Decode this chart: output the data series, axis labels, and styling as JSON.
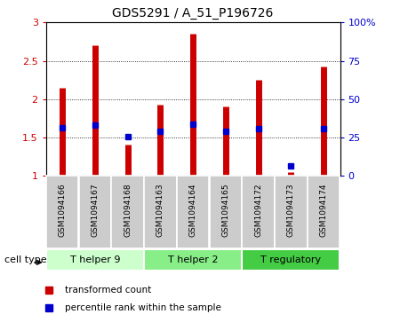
{
  "title": "GDS5291 / A_51_P196726",
  "samples": [
    "GSM1094166",
    "GSM1094167",
    "GSM1094168",
    "GSM1094163",
    "GSM1094164",
    "GSM1094165",
    "GSM1094172",
    "GSM1094173",
    "GSM1094174"
  ],
  "transformed_counts": [
    2.15,
    2.7,
    1.4,
    1.93,
    2.85,
    1.9,
    2.25,
    1.05,
    2.43
  ],
  "percentile_ranks": [
    1.62,
    1.66,
    1.51,
    1.58,
    1.67,
    1.58,
    1.61,
    1.12,
    1.61
  ],
  "bar_color": "#cc0000",
  "dot_color": "#0000cc",
  "ylim_left": [
    1.0,
    3.0
  ],
  "ylim_right": [
    0,
    100
  ],
  "yticks_left": [
    1.0,
    1.5,
    2.0,
    2.5,
    3.0
  ],
  "ytick_labels_left": [
    "1",
    "1.5",
    "2",
    "2.5",
    "3"
  ],
  "yticks_right": [
    0,
    25,
    50,
    75,
    100
  ],
  "ytick_labels_right": [
    "0",
    "25",
    "50",
    "75",
    "100%"
  ],
  "cell_groups": [
    {
      "label": "T helper 9",
      "indices": [
        0,
        1,
        2
      ],
      "color": "#ccffcc"
    },
    {
      "label": "T helper 2",
      "indices": [
        3,
        4,
        5
      ],
      "color": "#88ee88"
    },
    {
      "label": "T regulatory",
      "indices": [
        6,
        7,
        8
      ],
      "color": "#44cc44"
    }
  ],
  "cell_type_label": "cell type",
  "legend_items": [
    {
      "label": "transformed count",
      "color": "#cc0000"
    },
    {
      "label": "percentile rank within the sample",
      "color": "#0000cc"
    }
  ],
  "bar_bottom": 1.0,
  "tick_color_left": "#cc0000",
  "tick_color_right": "#0000cc",
  "label_box_color": "#cccccc",
  "label_box_edge": "#999999"
}
